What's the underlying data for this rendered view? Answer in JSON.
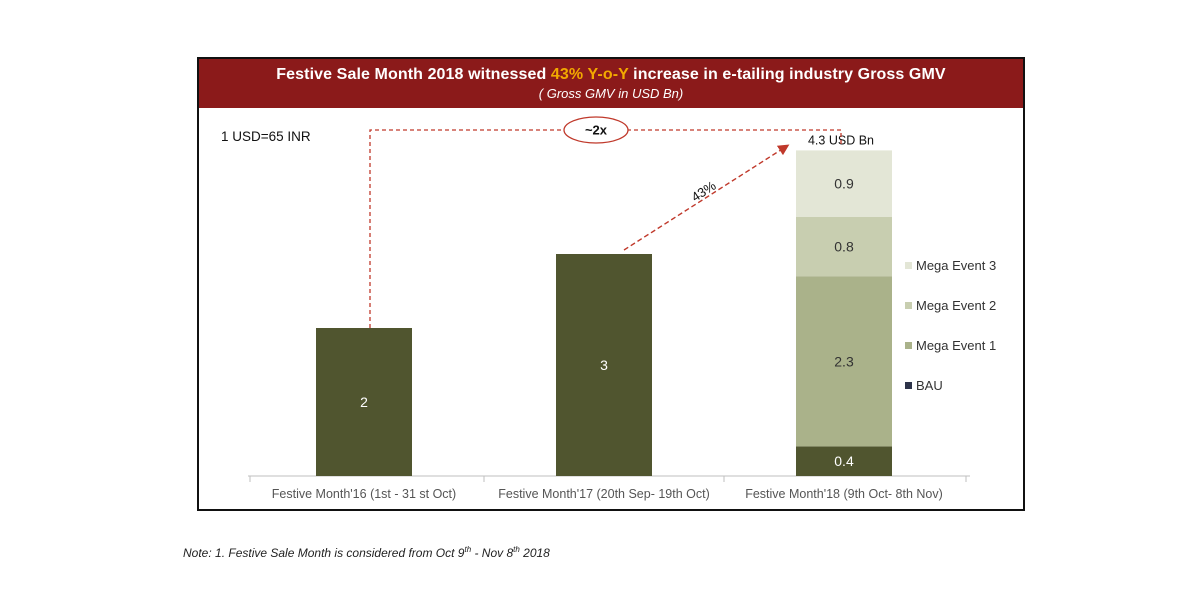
{
  "header": {
    "title_pre": "Festive Sale Month 2018 witnessed ",
    "title_highlight": "43% Y-o-Y",
    "title_post": " increase in e-tailing industry Gross GMV",
    "subtitle": "( Gross GMV in USD Bn)"
  },
  "colors": {
    "header_bg": "#8b1a1a",
    "highlight": "#f2a900",
    "bau": "#50552f",
    "mega1": "#aab28a",
    "mega2": "#c8ceb0",
    "mega3": "#e3e6d6",
    "arrow": "#c0392b"
  },
  "chart_data": {
    "type": "bar",
    "stacked": true,
    "title": "Festive Sale Month 2018 witnessed 43% Y-o-Y increase in e-tailing industry Gross GMV",
    "subtitle": "( Gross GMV in USD Bn)",
    "categories": [
      "Festive Month'16 (1st - 31 st Oct)",
      "Festive Month'17 (20th Sep- 19th Oct)",
      "Festive Month'18 (9th Oct- 8th Nov)"
    ],
    "series": [
      {
        "name": "BAU",
        "values": [
          2,
          3,
          0.4
        ],
        "labels": [
          "2",
          "3",
          "0.4"
        ]
      },
      {
        "name": "Mega Event 1",
        "values": [
          0,
          0,
          2.3
        ],
        "labels": [
          "",
          "",
          "2.3"
        ]
      },
      {
        "name": "Mega Event 2",
        "values": [
          0,
          0,
          0.8
        ],
        "labels": [
          "",
          "",
          "0.8"
        ]
      },
      {
        "name": "Mega Event 3",
        "values": [
          0,
          0,
          0.9
        ],
        "labels": [
          "",
          "",
          "0.9"
        ]
      }
    ],
    "legend": [
      "Mega Event 3",
      "Mega Event 2",
      "Mega Event 1",
      "BAU"
    ],
    "legend_position": "right",
    "total_label": "4.3 USD Bn",
    "ylim": [
      0,
      4.3
    ],
    "annotations": {
      "exchange_rate": "1 USD=65 INR",
      "yoy_growth": "43%",
      "multiple": "~2x"
    }
  },
  "footnote": {
    "prefix": "Note: 1. Festive Sale Month is considered from Oct 9",
    "sup1": "th",
    "mid": " - Nov 8",
    "sup2": "th",
    "suffix": " 2018"
  }
}
